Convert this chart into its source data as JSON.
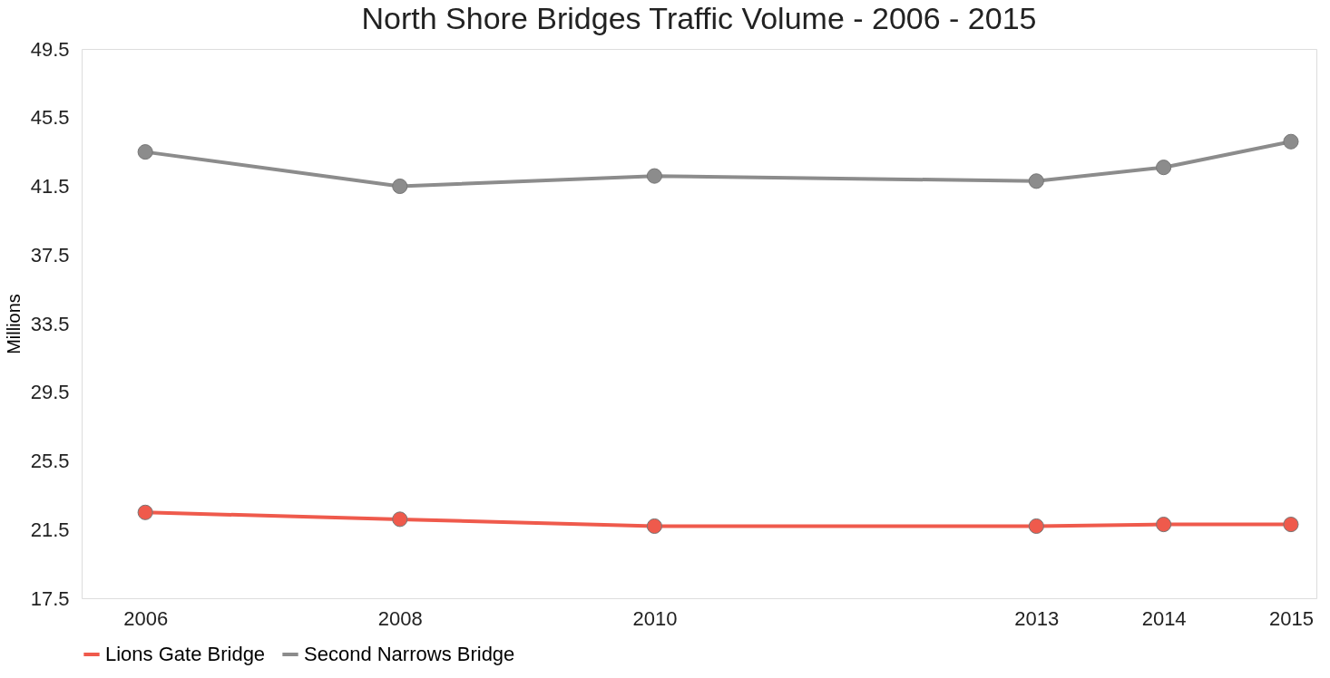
{
  "chart_data": {
    "type": "line",
    "title": "North Shore Bridges Traffic Volume - 2006 - 2015",
    "ylabel": "Millions",
    "x": [
      2006,
      2008,
      2010,
      2013,
      2014,
      2015
    ],
    "series": [
      {
        "name": "Lions Gate Bridge",
        "color": "#ef5a4c",
        "values": [
          22.5,
          22.1,
          21.7,
          21.7,
          21.8,
          21.8
        ]
      },
      {
        "name": "Second Narrows Bridge",
        "color": "#8c8c8c",
        "values": [
          43.5,
          41.5,
          42.1,
          41.8,
          42.6,
          44.1
        ]
      }
    ],
    "xlim": [
      2005.5,
      2015.2
    ],
    "xticks": [
      2006,
      2008,
      2010,
      2013,
      2014,
      2015
    ],
    "ylim": [
      17.5,
      49.5
    ],
    "yticks": [
      17.5,
      21.5,
      25.5,
      29.5,
      33.5,
      37.5,
      41.5,
      45.5,
      49.5
    ],
    "grid": false,
    "legend": "bottom",
    "marker": "circle",
    "line_style": "solid"
  }
}
